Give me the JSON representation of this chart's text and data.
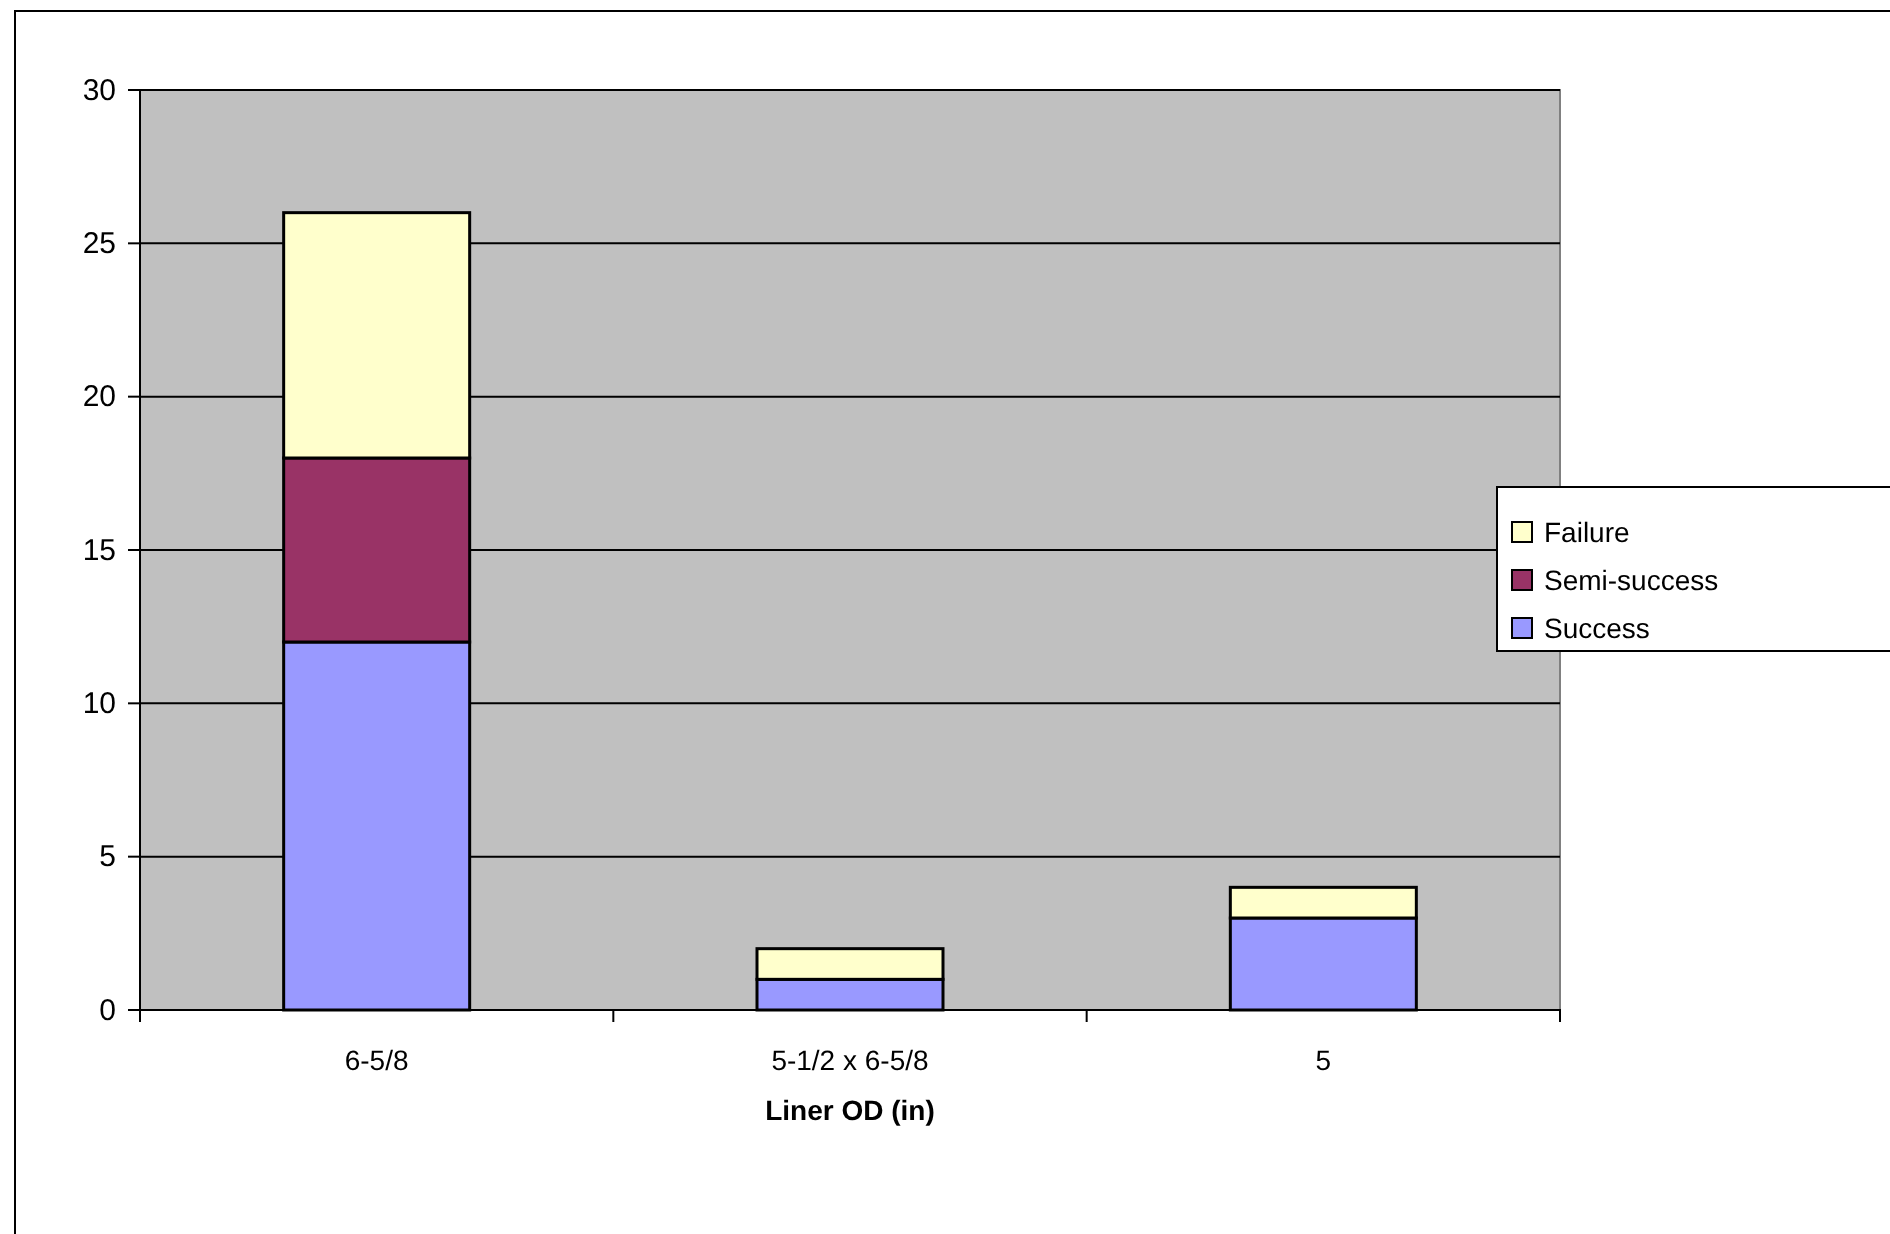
{
  "chart_data": {
    "type": "bar",
    "stacked": true,
    "xlabel": "Liner OD (in)",
    "categories": [
      "6-5/8",
      "5-1/2 x 6-5/8",
      "5"
    ],
    "series": [
      {
        "name": "Success",
        "color": "#9999ff",
        "values": [
          12,
          1,
          3
        ]
      },
      {
        "name": "Semi-success",
        "color": "#993366",
        "values": [
          6,
          0,
          0
        ]
      },
      {
        "name": "Failure",
        "color": "#ffffcc",
        "values": [
          8,
          1,
          1
        ]
      }
    ],
    "ylim": [
      0,
      30
    ],
    "yticks": [
      0,
      5,
      10,
      15,
      20,
      25,
      30
    ],
    "grid": "y",
    "legend": "right"
  }
}
